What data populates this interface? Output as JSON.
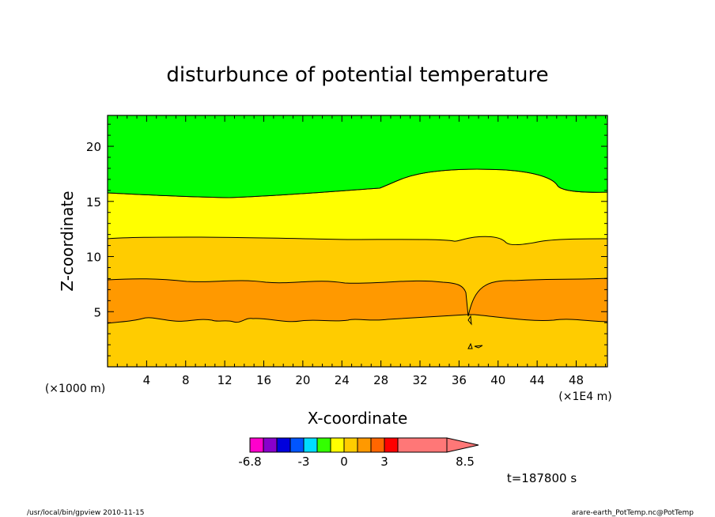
{
  "chart_data": {
    "type": "heatmap",
    "title": "disturbunce of potential temperature",
    "xlabel": "X-coordinate",
    "ylabel": "Z-coordinate",
    "x_unit_left": "(×1000 m)",
    "x_unit_right": "(×1E4 m)",
    "xlim": [
      0,
      51.2
    ],
    "ylim": [
      0,
      22.8
    ],
    "x_ticks": [
      4,
      8,
      12,
      16,
      20,
      24,
      28,
      32,
      36,
      40,
      44,
      48
    ],
    "y_ticks": [
      5,
      10,
      15,
      20
    ],
    "regions": [
      {
        "level": "0 to 1",
        "color": "#ffcc00",
        "z_from": 0,
        "z_to": 4.5
      },
      {
        "level": "1 to 2",
        "color": "#ff9900",
        "z_from": 4.5,
        "z_to": 7.7
      },
      {
        "level": "0 to 1",
        "color": "#ffcc00",
        "z_from": 7.7,
        "z_to": 11.7
      },
      {
        "level": "-1 to 0",
        "color": "#ffff00",
        "z_from": 11.7,
        "z_to": 15.8
      },
      {
        "level": "-2 to -1",
        "color": "#00ff00",
        "z_from": 15.8,
        "z_to": 22.8
      }
    ],
    "colorbar": {
      "colors": [
        "#ff00cc",
        "#8800cc",
        "#0000dd",
        "#0055ff",
        "#00ddff",
        "#33ff00",
        "#ffff00",
        "#ffcc00",
        "#ff9900",
        "#ff6600",
        "#ff0000",
        "#ff7777"
      ],
      "tick_labels": [
        "-6.8",
        "-3",
        "0",
        "3",
        "8.5"
      ],
      "extend": "max"
    },
    "time_label": "t=187800 s"
  },
  "footer": {
    "left": "/usr/local/bin/gpview   2010-11-15",
    "right": "arare-earth_PotTemp.nc@PotTemp"
  }
}
